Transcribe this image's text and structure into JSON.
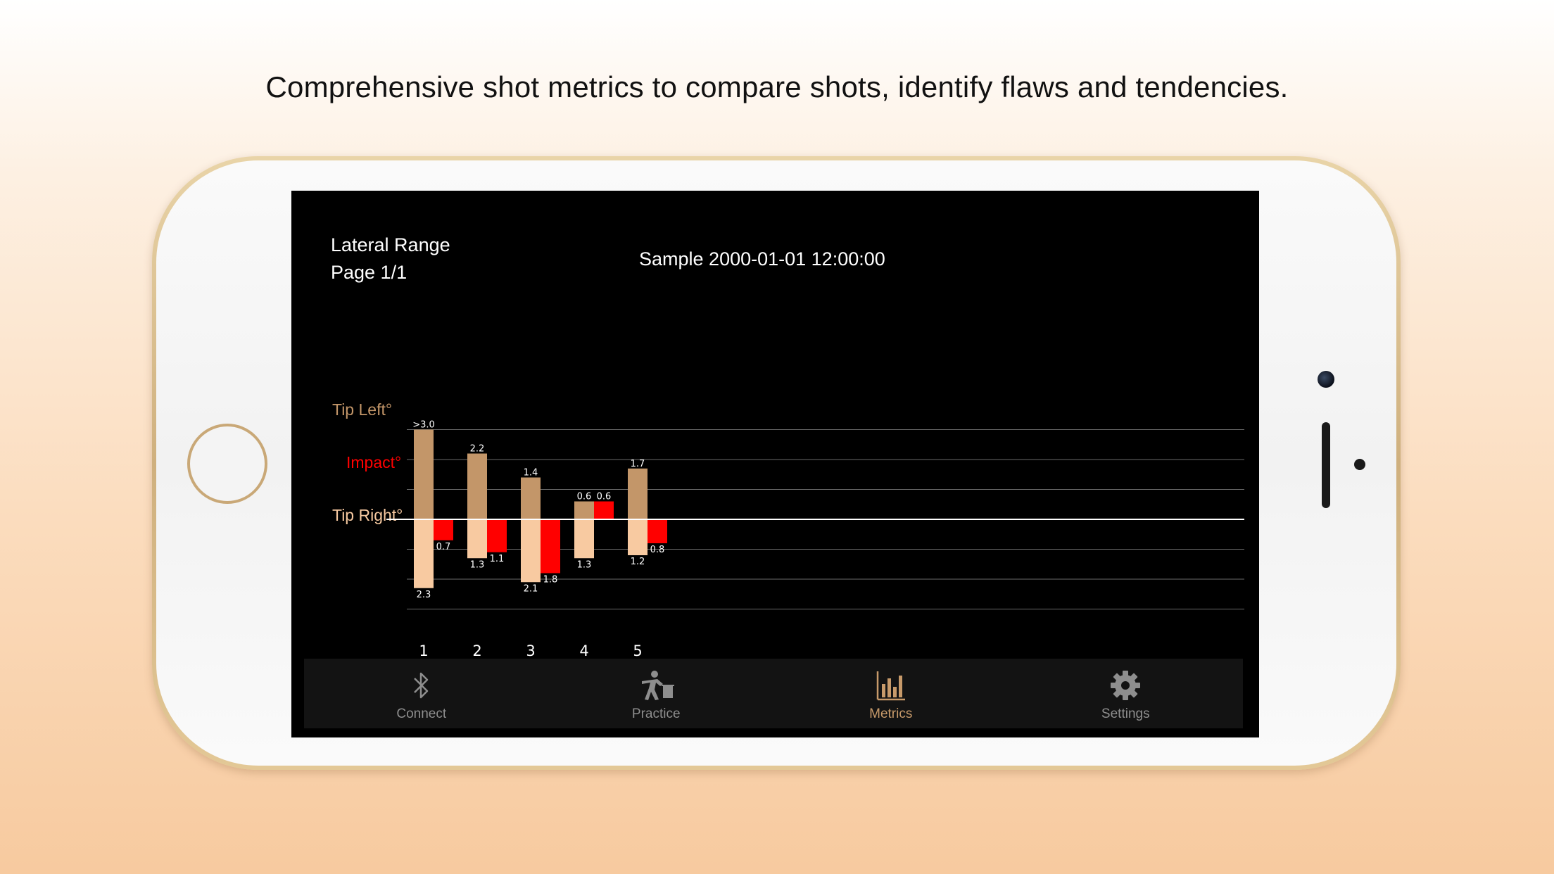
{
  "headline": "Comprehensive shot metrics to compare shots, identify flaws and tendencies.",
  "screen": {
    "title_line1": "Lateral Range",
    "title_line2": "Page 1/1",
    "session": "Sample 2000-01-01 12:00:00",
    "y_labels": {
      "tip_left": "Tip Left°",
      "impact": "Impact°",
      "tip_right": "Tip Right°"
    }
  },
  "colors": {
    "tip_left": "#c39669",
    "tip_right": "#f8caa1",
    "impact": "#ff0000",
    "active_tab": "#c79a6a"
  },
  "chart_data": {
    "type": "bar",
    "categories": [
      "1",
      "2",
      "3",
      "4",
      "5"
    ],
    "ylim": [
      -3.0,
      3.0
    ],
    "series": [
      {
        "name": "Tip Left°",
        "values": [
          3.0,
          2.2,
          1.4,
          0.6,
          1.7
        ],
        "labels": [
          ">3.0",
          "2.2",
          "1.4",
          "0.6",
          "1.7"
        ]
      },
      {
        "name": "Tip Right°",
        "values": [
          2.3,
          1.3,
          2.1,
          1.3,
          1.2
        ],
        "labels": [
          "2.3",
          "1.3",
          "2.1",
          "1.3",
          "1.2"
        ]
      },
      {
        "name": "Impact°",
        "values": [
          -0.7,
          -1.1,
          -1.8,
          0.6,
          -0.8
        ],
        "labels": [
          "0.7",
          "1.1",
          "1.8",
          "0.6",
          "0.8"
        ]
      }
    ],
    "grid": true
  },
  "tabs": [
    {
      "label": "Connect",
      "icon": "bluetooth-icon",
      "active": false
    },
    {
      "label": "Practice",
      "icon": "practice-icon",
      "active": false
    },
    {
      "label": "Metrics",
      "icon": "metrics-icon",
      "active": true
    },
    {
      "label": "Settings",
      "icon": "gear-icon",
      "active": false
    }
  ]
}
